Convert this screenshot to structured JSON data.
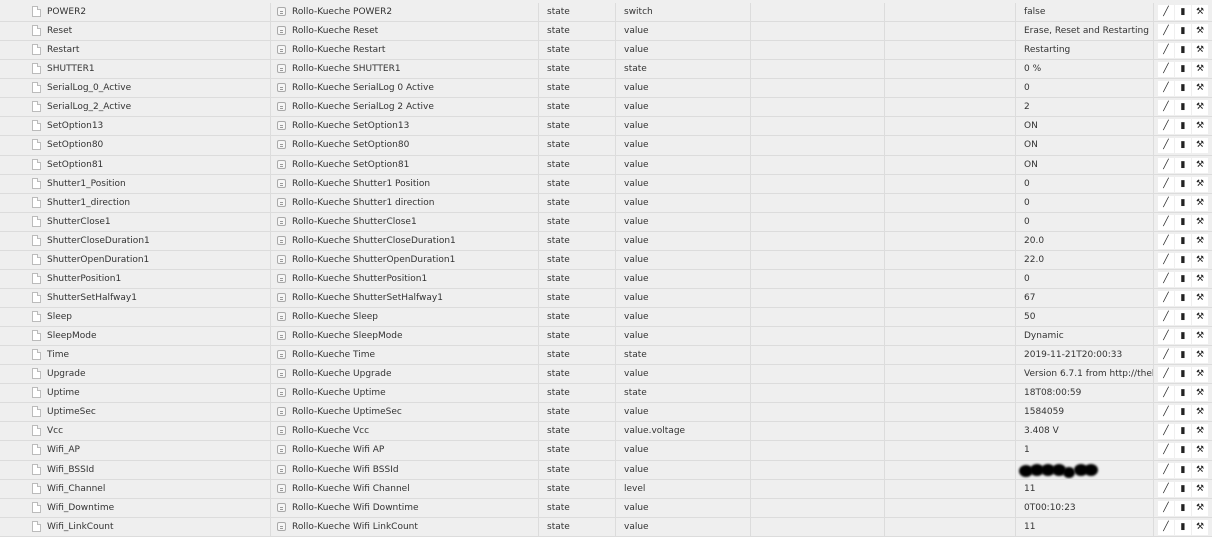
{
  "rows": [
    {
      "id": "POWER2",
      "name": "Rollo-Kueche POWER2",
      "type": "state",
      "role": "switch",
      "c5": "",
      "c6": "",
      "value": "false"
    },
    {
      "id": "Reset",
      "name": "Rollo-Kueche Reset",
      "type": "state",
      "role": "value",
      "c5": "",
      "c6": "",
      "value": "Erase, Reset and Restarting"
    },
    {
      "id": "Restart",
      "name": "Rollo-Kueche Restart",
      "type": "state",
      "role": "value",
      "c5": "",
      "c6": "",
      "value": "Restarting"
    },
    {
      "id": "SHUTTER1",
      "name": "Rollo-Kueche SHUTTER1",
      "type": "state",
      "role": "state",
      "c5": "",
      "c6": "",
      "value": "0 %"
    },
    {
      "id": "SerialLog_0_Active",
      "name": "Rollo-Kueche SerialLog 0 Active",
      "type": "state",
      "role": "value",
      "c5": "",
      "c6": "",
      "value": "0"
    },
    {
      "id": "SerialLog_2_Active",
      "name": "Rollo-Kueche SerialLog 2 Active",
      "type": "state",
      "role": "value",
      "c5": "",
      "c6": "",
      "value": "2"
    },
    {
      "id": "SetOption13",
      "name": "Rollo-Kueche SetOption13",
      "type": "state",
      "role": "value",
      "c5": "",
      "c6": "",
      "value": "ON"
    },
    {
      "id": "SetOption80",
      "name": "Rollo-Kueche SetOption80",
      "type": "state",
      "role": "value",
      "c5": "",
      "c6": "",
      "value": "ON"
    },
    {
      "id": "SetOption81",
      "name": "Rollo-Kueche SetOption81",
      "type": "state",
      "role": "value",
      "c5": "",
      "c6": "",
      "value": "ON"
    },
    {
      "id": "Shutter1_Position",
      "name": "Rollo-Kueche Shutter1 Position",
      "type": "state",
      "role": "value",
      "c5": "",
      "c6": "",
      "value": "0"
    },
    {
      "id": "Shutter1_direction",
      "name": "Rollo-Kueche Shutter1 direction",
      "type": "state",
      "role": "value",
      "c5": "",
      "c6": "",
      "value": "0"
    },
    {
      "id": "ShutterClose1",
      "name": "Rollo-Kueche ShutterClose1",
      "type": "state",
      "role": "value",
      "c5": "",
      "c6": "",
      "value": "0"
    },
    {
      "id": "ShutterCloseDuration1",
      "name": "Rollo-Kueche ShutterCloseDuration1",
      "type": "state",
      "role": "value",
      "c5": "",
      "c6": "",
      "value": "20.0"
    },
    {
      "id": "ShutterOpenDuration1",
      "name": "Rollo-Kueche ShutterOpenDuration1",
      "type": "state",
      "role": "value",
      "c5": "",
      "c6": "",
      "value": "22.0"
    },
    {
      "id": "ShutterPosition1",
      "name": "Rollo-Kueche ShutterPosition1",
      "type": "state",
      "role": "value",
      "c5": "",
      "c6": "",
      "value": "0"
    },
    {
      "id": "ShutterSetHalfway1",
      "name": "Rollo-Kueche ShutterSetHalfway1",
      "type": "state",
      "role": "value",
      "c5": "",
      "c6": "",
      "value": "67"
    },
    {
      "id": "Sleep",
      "name": "Rollo-Kueche Sleep",
      "type": "state",
      "role": "value",
      "c5": "",
      "c6": "",
      "value": "50"
    },
    {
      "id": "SleepMode",
      "name": "Rollo-Kueche SleepMode",
      "type": "state",
      "role": "value",
      "c5": "",
      "c6": "",
      "value": "Dynamic"
    },
    {
      "id": "Time",
      "name": "Rollo-Kueche Time",
      "type": "state",
      "role": "state",
      "c5": "",
      "c6": "",
      "value": "2019-11-21T20:00:33"
    },
    {
      "id": "Upgrade",
      "name": "Rollo-Kueche Upgrade",
      "type": "state",
      "role": "value",
      "c5": "",
      "c6": "",
      "value": "Version 6.7.1 from http://theh"
    },
    {
      "id": "Uptime",
      "name": "Rollo-Kueche Uptime",
      "type": "state",
      "role": "state",
      "c5": "",
      "c6": "",
      "value": "18T08:00:59"
    },
    {
      "id": "UptimeSec",
      "name": "Rollo-Kueche UptimeSec",
      "type": "state",
      "role": "value",
      "c5": "",
      "c6": "",
      "value": "1584059"
    },
    {
      "id": "Vcc",
      "name": "Rollo-Kueche Vcc",
      "type": "state",
      "role": "value.voltage",
      "c5": "",
      "c6": "",
      "value": "3.408 V"
    },
    {
      "id": "Wifi_AP",
      "name": "Rollo-Kueche Wifi AP",
      "type": "state",
      "role": "value",
      "c5": "",
      "c6": "",
      "value": "1"
    },
    {
      "id": "Wifi_BSSId",
      "name": "Rollo-Kueche Wifi BSSId",
      "type": "state",
      "role": "value",
      "c5": "",
      "c6": "",
      "value": null,
      "redacted": true
    },
    {
      "id": "Wifi_Channel",
      "name": "Rollo-Kueche Wifi Channel",
      "type": "state",
      "role": "level",
      "c5": "",
      "c6": "",
      "value": "11"
    },
    {
      "id": "Wifi_Downtime",
      "name": "Rollo-Kueche Wifi Downtime",
      "type": "state",
      "role": "value",
      "c5": "",
      "c6": "",
      "value": "0T00:10:23"
    },
    {
      "id": "Wifi_LinkCount",
      "name": "Rollo-Kueche Wifi LinkCount",
      "type": "state",
      "role": "value",
      "c5": "",
      "c6": "",
      "value": "11"
    }
  ],
  "actions": {
    "edit_icon": "pencil-icon",
    "delete_icon": "trash-icon",
    "settings_icon": "wrench-icon"
  }
}
